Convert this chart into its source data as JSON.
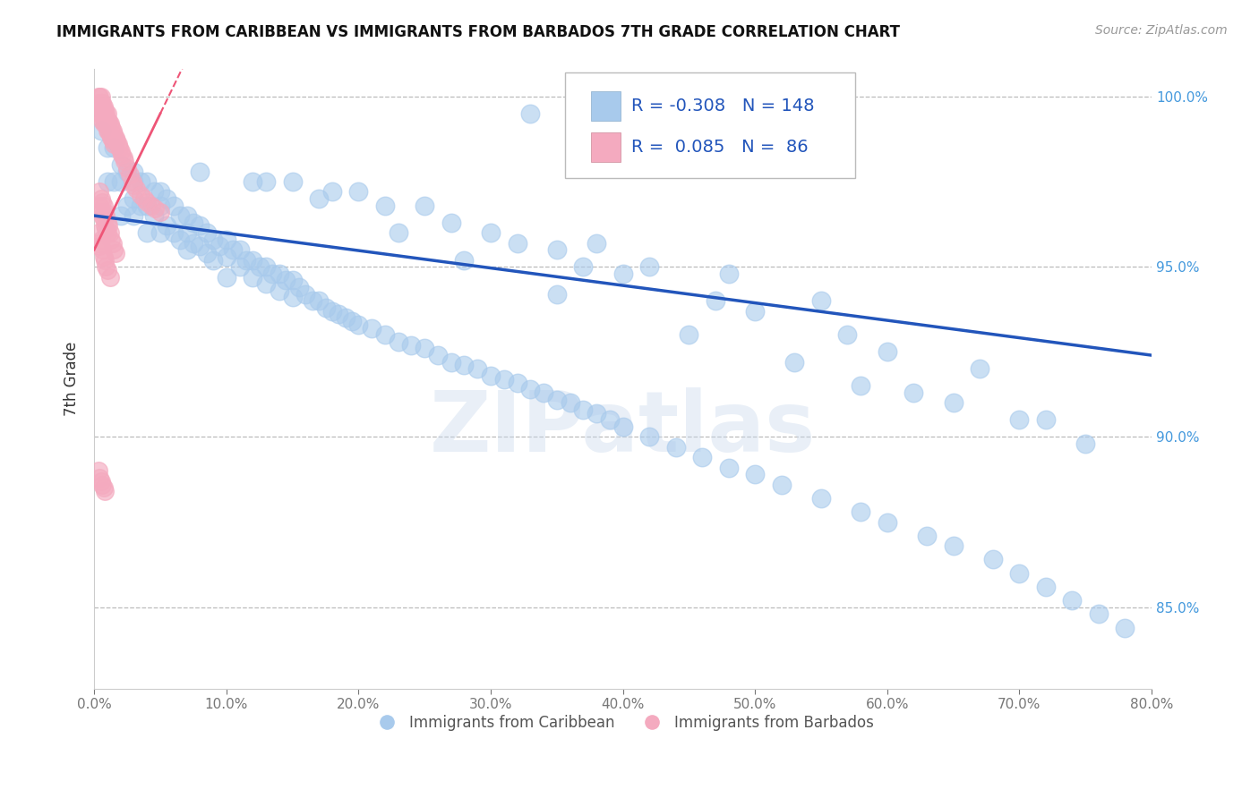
{
  "title": "IMMIGRANTS FROM CARIBBEAN VS IMMIGRANTS FROM BARBADOS 7TH GRADE CORRELATION CHART",
  "source": "Source: ZipAtlas.com",
  "ylabel": "7th Grade",
  "legend_labels": [
    "Immigrants from Caribbean",
    "Immigrants from Barbados"
  ],
  "legend_r": [
    -0.308,
    0.085
  ],
  "legend_n": [
    148,
    86
  ],
  "blue_color": "#A8CAEC",
  "pink_color": "#F4AABF",
  "trend_blue": "#2255BB",
  "trend_pink": "#EE5577",
  "xlim": [
    0.0,
    0.8
  ],
  "ylim": [
    0.826,
    1.008
  ],
  "xtick_vals": [
    0.0,
    0.1,
    0.2,
    0.3,
    0.4,
    0.5,
    0.6,
    0.7,
    0.8
  ],
  "ytick_vals": [
    0.85,
    0.9,
    0.95,
    1.0
  ],
  "watermark": "ZIPatlas",
  "blue_x": [
    0.005,
    0.01,
    0.01,
    0.015,
    0.015,
    0.02,
    0.02,
    0.02,
    0.025,
    0.025,
    0.03,
    0.03,
    0.03,
    0.03,
    0.035,
    0.035,
    0.04,
    0.04,
    0.04,
    0.045,
    0.045,
    0.05,
    0.05,
    0.05,
    0.055,
    0.055,
    0.06,
    0.06,
    0.065,
    0.065,
    0.07,
    0.07,
    0.07,
    0.075,
    0.075,
    0.08,
    0.08,
    0.085,
    0.085,
    0.09,
    0.09,
    0.095,
    0.1,
    0.1,
    0.1,
    0.105,
    0.11,
    0.11,
    0.115,
    0.12,
    0.12,
    0.125,
    0.13,
    0.13,
    0.135,
    0.14,
    0.14,
    0.145,
    0.15,
    0.15,
    0.155,
    0.16,
    0.165,
    0.17,
    0.175,
    0.18,
    0.185,
    0.19,
    0.195,
    0.2,
    0.21,
    0.22,
    0.23,
    0.24,
    0.25,
    0.26,
    0.27,
    0.28,
    0.29,
    0.3,
    0.31,
    0.32,
    0.33,
    0.34,
    0.35,
    0.36,
    0.37,
    0.38,
    0.39,
    0.4,
    0.42,
    0.44,
    0.46,
    0.48,
    0.5,
    0.52,
    0.55,
    0.58,
    0.6,
    0.63,
    0.65,
    0.68,
    0.7,
    0.72,
    0.74,
    0.76,
    0.78,
    0.3,
    0.35,
    0.42,
    0.25,
    0.2,
    0.15,
    0.55,
    0.48,
    0.38,
    0.6,
    0.5,
    0.4,
    0.32,
    0.27,
    0.22,
    0.18,
    0.13,
    0.08,
    0.45,
    0.53,
    0.62,
    0.7,
    0.75,
    0.35,
    0.28,
    0.23,
    0.17,
    0.12,
    0.58,
    0.65,
    0.72,
    0.67,
    0.57,
    0.47,
    0.37,
    0.47,
    0.52,
    0.43,
    0.33
  ],
  "blue_y": [
    0.99,
    0.985,
    0.975,
    0.985,
    0.975,
    0.98,
    0.975,
    0.965,
    0.978,
    0.968,
    0.978,
    0.975,
    0.97,
    0.965,
    0.975,
    0.968,
    0.975,
    0.968,
    0.96,
    0.972,
    0.965,
    0.972,
    0.968,
    0.96,
    0.97,
    0.962,
    0.968,
    0.96,
    0.965,
    0.958,
    0.965,
    0.96,
    0.955,
    0.963,
    0.957,
    0.962,
    0.956,
    0.96,
    0.954,
    0.958,
    0.952,
    0.956,
    0.958,
    0.953,
    0.947,
    0.955,
    0.955,
    0.95,
    0.952,
    0.952,
    0.947,
    0.95,
    0.95,
    0.945,
    0.948,
    0.948,
    0.943,
    0.946,
    0.946,
    0.941,
    0.944,
    0.942,
    0.94,
    0.94,
    0.938,
    0.937,
    0.936,
    0.935,
    0.934,
    0.933,
    0.932,
    0.93,
    0.928,
    0.927,
    0.926,
    0.924,
    0.922,
    0.921,
    0.92,
    0.918,
    0.917,
    0.916,
    0.914,
    0.913,
    0.911,
    0.91,
    0.908,
    0.907,
    0.905,
    0.903,
    0.9,
    0.897,
    0.894,
    0.891,
    0.889,
    0.886,
    0.882,
    0.878,
    0.875,
    0.871,
    0.868,
    0.864,
    0.86,
    0.856,
    0.852,
    0.848,
    0.844,
    0.96,
    0.955,
    0.95,
    0.968,
    0.972,
    0.975,
    0.94,
    0.948,
    0.957,
    0.925,
    0.937,
    0.948,
    0.957,
    0.963,
    0.968,
    0.972,
    0.975,
    0.978,
    0.93,
    0.922,
    0.913,
    0.905,
    0.898,
    0.942,
    0.952,
    0.96,
    0.97,
    0.975,
    0.915,
    0.91,
    0.905,
    0.92,
    0.93,
    0.94,
    0.95,
    0.985,
    0.98,
    0.99,
    0.995
  ],
  "pink_x": [
    0.003,
    0.003,
    0.003,
    0.004,
    0.004,
    0.005,
    0.005,
    0.005,
    0.006,
    0.006,
    0.006,
    0.007,
    0.007,
    0.007,
    0.008,
    0.008,
    0.009,
    0.009,
    0.01,
    0.01,
    0.01,
    0.011,
    0.011,
    0.012,
    0.012,
    0.013,
    0.013,
    0.014,
    0.014,
    0.015,
    0.015,
    0.016,
    0.017,
    0.018,
    0.019,
    0.02,
    0.021,
    0.022,
    0.023,
    0.025,
    0.027,
    0.029,
    0.03,
    0.032,
    0.035,
    0.038,
    0.04,
    0.043,
    0.046,
    0.05,
    0.004,
    0.004,
    0.005,
    0.005,
    0.006,
    0.006,
    0.007,
    0.007,
    0.008,
    0.008,
    0.009,
    0.009,
    0.01,
    0.01,
    0.011,
    0.012,
    0.013,
    0.014,
    0.015,
    0.016,
    0.003,
    0.003,
    0.004,
    0.005,
    0.006,
    0.007,
    0.008,
    0.009,
    0.01,
    0.012,
    0.003,
    0.004,
    0.005,
    0.006,
    0.007,
    0.008
  ],
  "pink_y": [
    1.0,
    0.998,
    0.995,
    1.0,
    0.998,
    1.0,
    0.998,
    0.995,
    0.998,
    0.996,
    0.993,
    0.997,
    0.995,
    0.992,
    0.996,
    0.993,
    0.995,
    0.992,
    0.995,
    0.993,
    0.99,
    0.993,
    0.99,
    0.992,
    0.989,
    0.991,
    0.988,
    0.99,
    0.987,
    0.989,
    0.986,
    0.988,
    0.987,
    0.986,
    0.985,
    0.984,
    0.983,
    0.982,
    0.981,
    0.979,
    0.977,
    0.975,
    0.974,
    0.973,
    0.971,
    0.97,
    0.969,
    0.968,
    0.967,
    0.966,
    0.972,
    0.968,
    0.97,
    0.966,
    0.969,
    0.965,
    0.968,
    0.964,
    0.966,
    0.962,
    0.965,
    0.961,
    0.963,
    0.96,
    0.962,
    0.96,
    0.958,
    0.957,
    0.955,
    0.954,
    0.96,
    0.957,
    0.956,
    0.958,
    0.955,
    0.953,
    0.952,
    0.95,
    0.949,
    0.947,
    0.89,
    0.888,
    0.887,
    0.886,
    0.885,
    0.884
  ]
}
